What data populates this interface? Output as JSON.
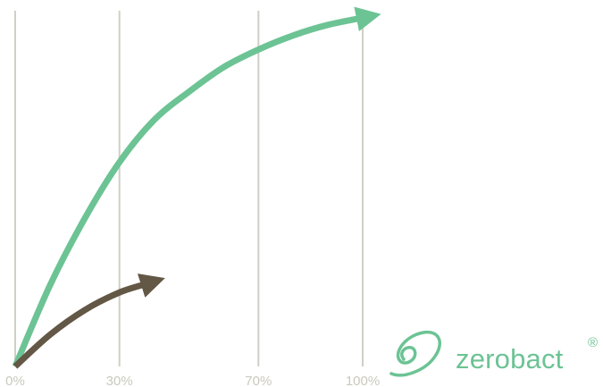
{
  "chart_data": {
    "type": "line",
    "title": "",
    "xlabel": "",
    "ylabel": "",
    "xlim": [
      0,
      100
    ],
    "x_tick_labels": [
      {
        "x": 0,
        "label": "0%"
      },
      {
        "x": 30,
        "label": "30%"
      },
      {
        "x": 70,
        "label": "70%"
      },
      {
        "x": 100,
        "label": "100%"
      }
    ],
    "grid": true,
    "legend": "none",
    "colors": {
      "grid": "#cfcfc4",
      "tick_text": "#c9c9bd",
      "series_green": "#6cc394",
      "series_brown": "#635746"
    },
    "series": [
      {
        "color": "#6cc394",
        "x": [
          0,
          10,
          20,
          30,
          40,
          50,
          60,
          70,
          80,
          90,
          100
        ],
        "y": [
          0,
          23,
          42,
          58,
          70,
          78,
          85,
          90,
          94,
          97,
          99
        ]
      },
      {
        "color": "#635746",
        "x": [
          0,
          10,
          20,
          30,
          38
        ],
        "y": [
          0,
          9,
          16,
          21,
          23.5
        ]
      }
    ]
  },
  "logo": {
    "name": "zerobact",
    "registered": "®",
    "color": "#6cc394",
    "icon": "swirl-icon"
  }
}
